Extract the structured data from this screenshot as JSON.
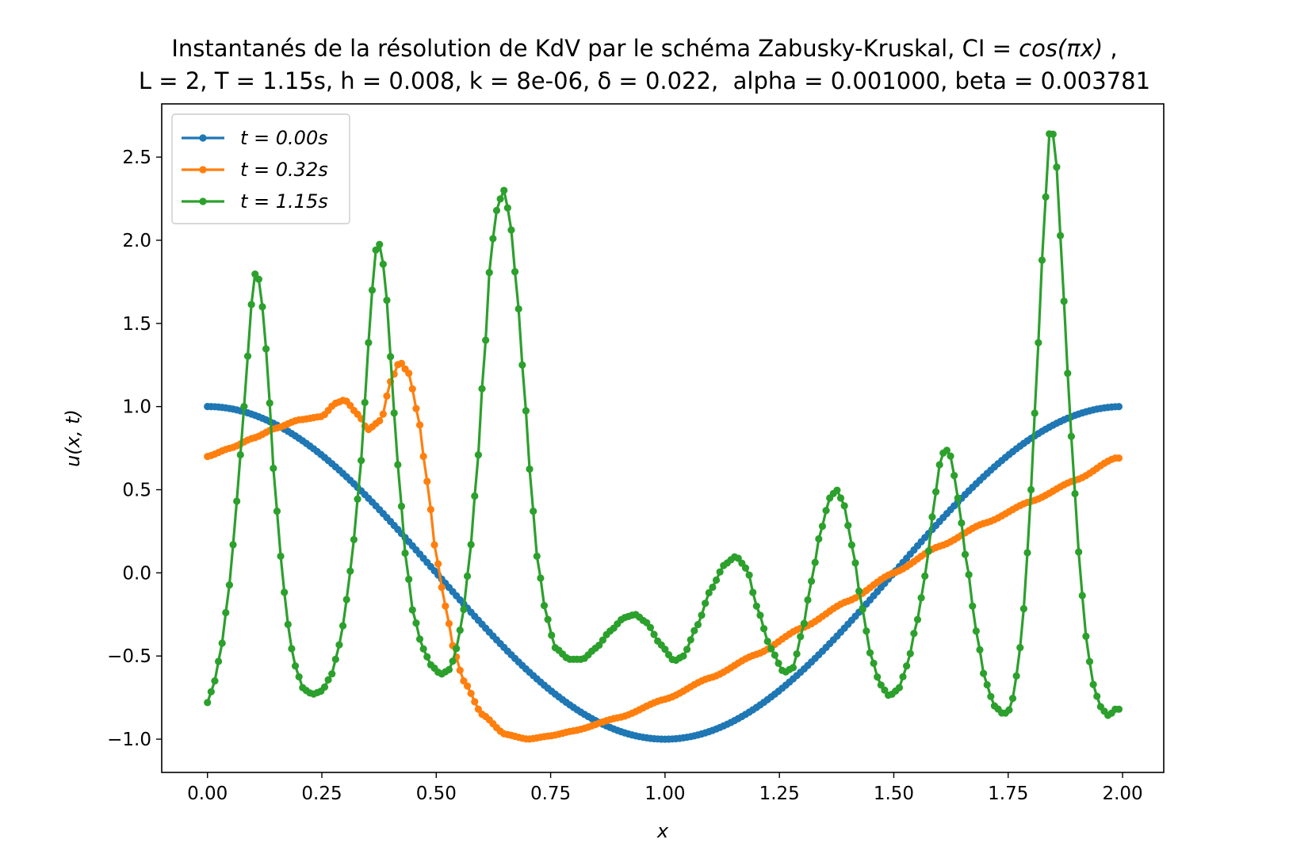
{
  "chart_data": {
    "type": "line",
    "title_line1_pre": "Instantanés de la résolution de KdV par le schéma Zabusky-Kruskal, CI = ",
    "title_line1_ital": "cos(πx)",
    "title_line1_post": " ,",
    "title_line2": "L = 2, T = 1.15s, h = 0.008, k = 8e-06, δ = 0.022,  alpha = 0.001000, beta = 0.003781",
    "xlabel": "x",
    "ylabel": "u(x, t)",
    "xlim": [
      -0.1,
      2.09
    ],
    "ylim": [
      -1.2,
      2.82
    ],
    "xticks": [
      "0.00",
      "0.25",
      "0.50",
      "0.75",
      "1.00",
      "1.25",
      "1.50",
      "1.75",
      "2.00"
    ],
    "yticks": [
      "−1.0",
      "−0.5",
      "0.0",
      "0.5",
      "1.0",
      "1.5",
      "2.0",
      "2.5"
    ],
    "legend_position": "top-left",
    "x": {
      "start": 0.0,
      "step": 0.008,
      "count": 250
    },
    "series": [
      {
        "name": "t = 0.00s",
        "color": "#1f77b4",
        "formula": "cos(pi*x)"
      },
      {
        "name": "t = 0.32s",
        "color": "#ff7f0e",
        "points": [
          [
            0.0,
            0.7
          ],
          [
            0.05,
            0.75
          ],
          [
            0.1,
            0.81
          ],
          [
            0.15,
            0.87
          ],
          [
            0.2,
            0.92
          ],
          [
            0.25,
            0.94
          ],
          [
            0.28,
            1.02
          ],
          [
            0.3,
            1.04
          ],
          [
            0.33,
            0.95
          ],
          [
            0.35,
            0.86
          ],
          [
            0.38,
            0.92
          ],
          [
            0.4,
            1.15
          ],
          [
            0.42,
            1.27
          ],
          [
            0.44,
            1.2
          ],
          [
            0.46,
            0.95
          ],
          [
            0.48,
            0.55
          ],
          [
            0.5,
            0.1
          ],
          [
            0.52,
            -0.2
          ],
          [
            0.54,
            -0.48
          ],
          [
            0.56,
            -0.65
          ],
          [
            0.6,
            -0.85
          ],
          [
            0.65,
            -0.97
          ],
          [
            0.7,
            -1.0
          ],
          [
            0.75,
            -0.98
          ],
          [
            0.8,
            -0.95
          ],
          [
            0.9,
            -0.87
          ],
          [
            1.0,
            -0.76
          ],
          [
            1.1,
            -0.63
          ],
          [
            1.2,
            -0.49
          ],
          [
            1.3,
            -0.33
          ],
          [
            1.4,
            -0.17
          ],
          [
            1.5,
            0.0
          ],
          [
            1.6,
            0.16
          ],
          [
            1.7,
            0.3
          ],
          [
            1.8,
            0.43
          ],
          [
            1.9,
            0.56
          ],
          [
            1.984,
            0.69
          ]
        ]
      },
      {
        "name": "t = 1.15s",
        "color": "#2ca02c",
        "points": [
          [
            0.0,
            -0.78
          ],
          [
            0.016,
            -0.65
          ],
          [
            0.03,
            -0.45
          ],
          [
            0.045,
            -0.15
          ],
          [
            0.055,
            0.15
          ],
          [
            0.065,
            0.45
          ],
          [
            0.075,
            0.8
          ],
          [
            0.085,
            1.2
          ],
          [
            0.095,
            1.6
          ],
          [
            0.105,
            1.81
          ],
          [
            0.115,
            1.75
          ],
          [
            0.125,
            1.45
          ],
          [
            0.135,
            1.05
          ],
          [
            0.145,
            0.6
          ],
          [
            0.16,
            0.1
          ],
          [
            0.175,
            -0.3
          ],
          [
            0.19,
            -0.55
          ],
          [
            0.21,
            -0.7
          ],
          [
            0.23,
            -0.73
          ],
          [
            0.25,
            -0.71
          ],
          [
            0.27,
            -0.62
          ],
          [
            0.29,
            -0.42
          ],
          [
            0.305,
            -0.15
          ],
          [
            0.32,
            0.2
          ],
          [
            0.335,
            0.65
          ],
          [
            0.345,
            1.05
          ],
          [
            0.355,
            1.5
          ],
          [
            0.365,
            1.9
          ],
          [
            0.372,
            2.0
          ],
          [
            0.38,
            1.95
          ],
          [
            0.39,
            1.7
          ],
          [
            0.4,
            1.3
          ],
          [
            0.41,
            0.9
          ],
          [
            0.42,
            0.5
          ],
          [
            0.435,
            0.05
          ],
          [
            0.45,
            -0.25
          ],
          [
            0.47,
            -0.45
          ],
          [
            0.49,
            -0.56
          ],
          [
            0.51,
            -0.61
          ],
          [
            0.53,
            -0.58
          ],
          [
            0.545,
            -0.45
          ],
          [
            0.56,
            -0.22
          ],
          [
            0.575,
            0.15
          ],
          [
            0.59,
            0.65
          ],
          [
            0.605,
            1.3
          ],
          [
            0.62,
            1.95
          ],
          [
            0.635,
            2.22
          ],
          [
            0.648,
            2.3
          ],
          [
            0.66,
            2.15
          ],
          [
            0.675,
            1.75
          ],
          [
            0.69,
            1.2
          ],
          [
            0.705,
            0.6
          ],
          [
            0.72,
            0.1
          ],
          [
            0.74,
            -0.25
          ],
          [
            0.76,
            -0.45
          ],
          [
            0.79,
            -0.52
          ],
          [
            0.82,
            -0.52
          ],
          [
            0.85,
            -0.45
          ],
          [
            0.88,
            -0.35
          ],
          [
            0.91,
            -0.27
          ],
          [
            0.935,
            -0.25
          ],
          [
            0.96,
            -0.3
          ],
          [
            0.99,
            -0.43
          ],
          [
            1.02,
            -0.53
          ],
          [
            1.04,
            -0.5
          ],
          [
            1.07,
            -0.32
          ],
          [
            1.1,
            -0.1
          ],
          [
            1.13,
            0.05
          ],
          [
            1.155,
            0.1
          ],
          [
            1.18,
            0.02
          ],
          [
            1.2,
            -0.2
          ],
          [
            1.23,
            -0.45
          ],
          [
            1.26,
            -0.6
          ],
          [
            1.28,
            -0.57
          ],
          [
            1.3,
            -0.35
          ],
          [
            1.32,
            -0.05
          ],
          [
            1.34,
            0.25
          ],
          [
            1.36,
            0.45
          ],
          [
            1.375,
            0.5
          ],
          [
            1.39,
            0.42
          ],
          [
            1.41,
            0.15
          ],
          [
            1.43,
            -0.2
          ],
          [
            1.45,
            -0.5
          ],
          [
            1.47,
            -0.67
          ],
          [
            1.49,
            -0.74
          ],
          [
            1.51,
            -0.7
          ],
          [
            1.53,
            -0.55
          ],
          [
            1.55,
            -0.3
          ],
          [
            1.57,
            0.0
          ],
          [
            1.585,
            0.35
          ],
          [
            1.6,
            0.65
          ],
          [
            1.612,
            0.75
          ],
          [
            1.625,
            0.7
          ],
          [
            1.64,
            0.45
          ],
          [
            1.66,
            0.05
          ],
          [
            1.68,
            -0.35
          ],
          [
            1.7,
            -0.65
          ],
          [
            1.72,
            -0.8
          ],
          [
            1.74,
            -0.85
          ],
          [
            1.755,
            -0.82
          ],
          [
            1.77,
            -0.6
          ],
          [
            1.785,
            -0.2
          ],
          [
            1.8,
            0.5
          ],
          [
            1.815,
            1.35
          ],
          [
            1.83,
            2.2
          ],
          [
            1.842,
            2.7
          ],
          [
            1.852,
            2.6
          ],
          [
            1.865,
            2.0
          ],
          [
            1.88,
            1.2
          ],
          [
            1.895,
            0.5
          ],
          [
            1.91,
            -0.1
          ],
          [
            1.925,
            -0.5
          ],
          [
            1.94,
            -0.72
          ],
          [
            1.955,
            -0.82
          ],
          [
            1.97,
            -0.86
          ],
          [
            1.984,
            -0.82
          ]
        ]
      }
    ]
  }
}
